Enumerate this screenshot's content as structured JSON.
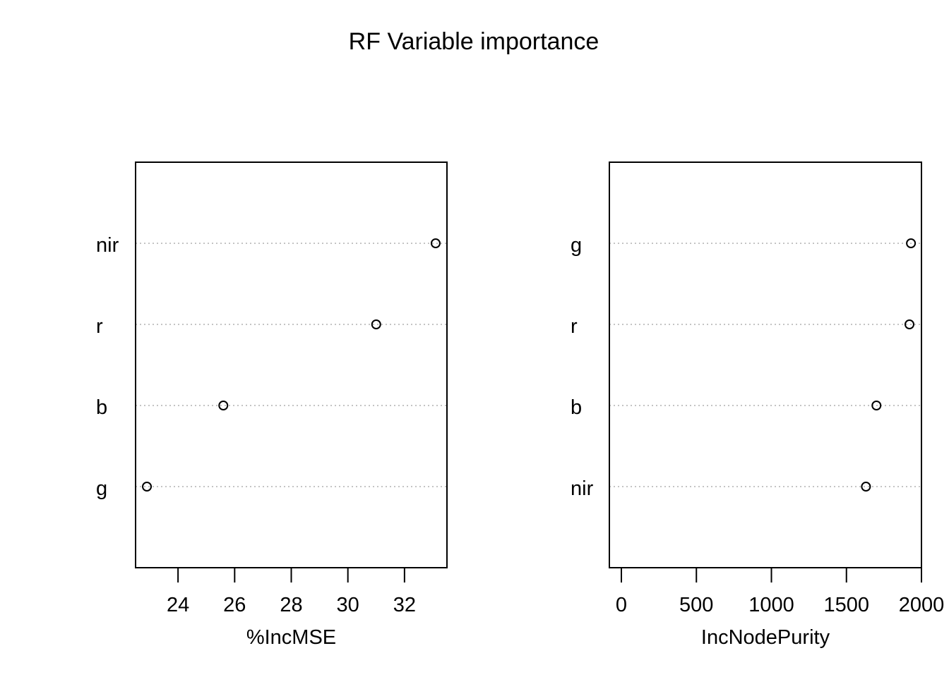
{
  "title": "RF Variable importance",
  "chart_data": [
    {
      "type": "scatter",
      "style": "dotchart",
      "xlabel": "%IncMSE",
      "ylabel": "",
      "categories": [
        "nir",
        "r",
        "b",
        "g"
      ],
      "values": [
        33.1,
        31.0,
        25.6,
        22.9
      ],
      "xlim": [
        22.5,
        33.5
      ],
      "xticks": [
        24,
        26,
        28,
        30,
        32
      ],
      "grid": "dotted horizontal",
      "legend": "none"
    },
    {
      "type": "scatter",
      "style": "dotchart",
      "xlabel": "IncNodePurity",
      "ylabel": "",
      "categories": [
        "g",
        "r",
        "b",
        "nir"
      ],
      "values": [
        1930,
        1920,
        1700,
        1630
      ],
      "xlim": [
        -80,
        2000
      ],
      "xticks": [
        0,
        500,
        1000,
        1500,
        2000
      ],
      "grid": "dotted horizontal",
      "legend": "none"
    }
  ]
}
